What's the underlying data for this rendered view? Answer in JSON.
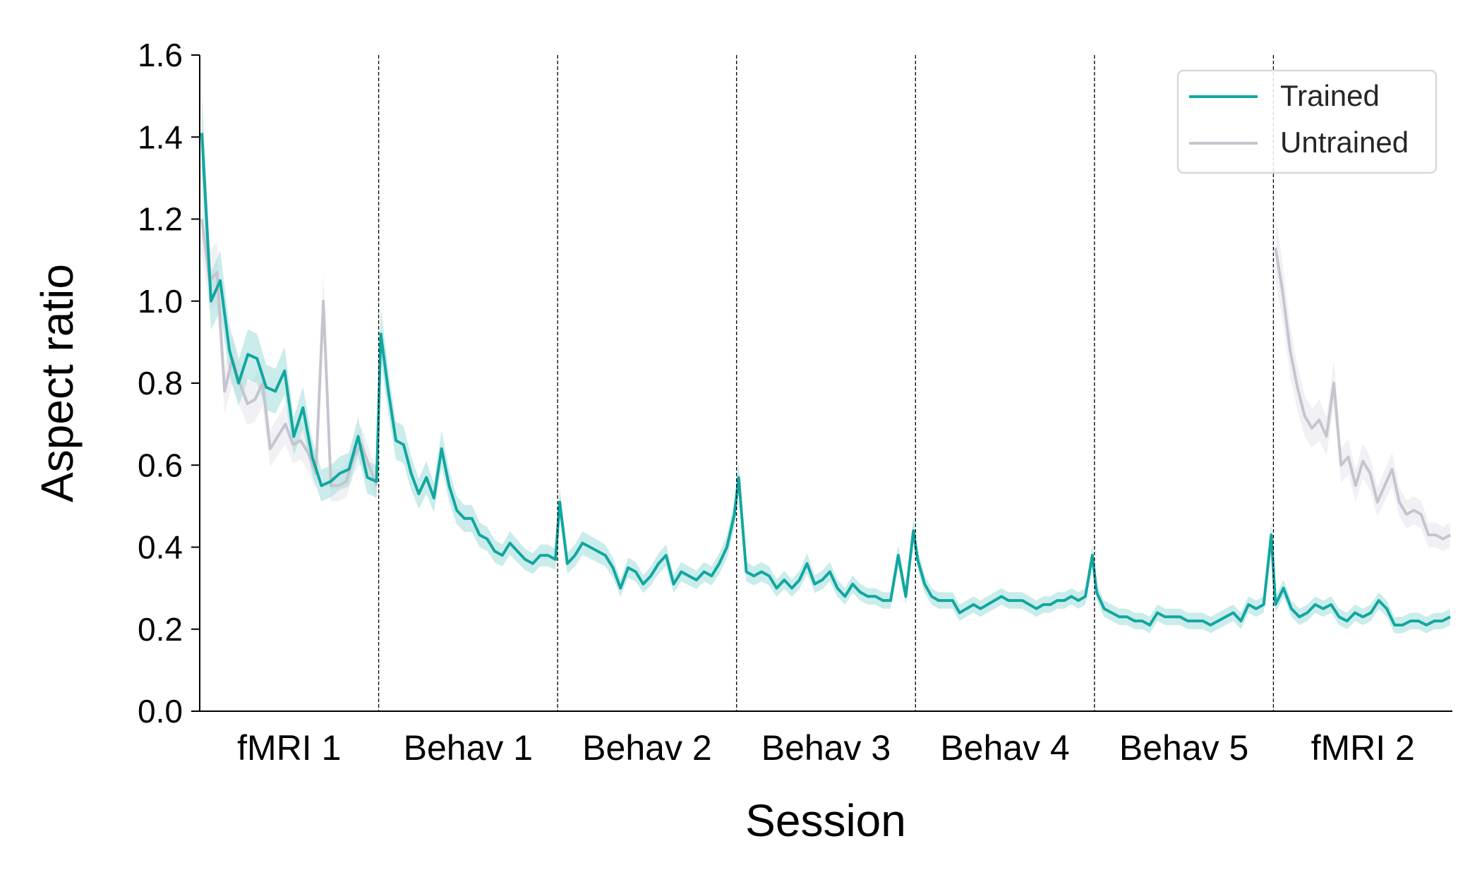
{
  "chart_data": {
    "type": "line",
    "xlabel": "Session",
    "ylabel": "Aspect ratio",
    "ylim": [
      0,
      1.6
    ],
    "yticks": [
      "0.0",
      "0.2",
      "0.4",
      "0.6",
      "0.8",
      "1.0",
      "1.2",
      "1.4",
      "1.6"
    ],
    "sessions": [
      "fMRI 1",
      "Behav 1",
      "Behav 2",
      "Behav 3",
      "Behav 4",
      "Behav 5",
      "fMRI 2"
    ],
    "legend": {
      "position": "top-right",
      "entries": [
        "Trained",
        "Untrained"
      ]
    },
    "colors": {
      "Trained": "#12a6a0",
      "Untrained": "#c5c5cf",
      "trained_band": "#9fdcd8",
      "untrained_band": "#e6e6ec"
    },
    "series": [
      {
        "name": "Trained",
        "color": "#12a6a0",
        "sessions": [
          [
            1.41,
            1.0,
            1.05,
            0.88,
            0.8,
            0.87,
            0.86,
            0.79,
            0.78,
            0.83,
            0.67,
            0.74,
            0.62,
            0.55,
            0.56,
            0.58,
            0.59,
            0.67,
            0.57,
            0.56
          ],
          [
            0.92,
            0.78,
            0.66,
            0.65,
            0.58,
            0.53,
            0.57,
            0.52,
            0.64,
            0.55,
            0.49,
            0.47,
            0.47,
            0.43,
            0.42,
            0.39,
            0.38,
            0.41,
            0.39,
            0.37,
            0.36,
            0.38,
            0.38,
            0.37
          ],
          [
            0.51,
            0.36,
            0.38,
            0.41,
            0.4,
            0.39,
            0.38,
            0.35,
            0.3,
            0.35,
            0.34,
            0.31,
            0.33,
            0.36,
            0.38,
            0.31,
            0.34,
            0.33,
            0.32,
            0.34,
            0.33,
            0.36,
            0.4,
            0.48
          ],
          [
            0.57,
            0.34,
            0.33,
            0.34,
            0.33,
            0.3,
            0.32,
            0.3,
            0.32,
            0.36,
            0.31,
            0.32,
            0.34,
            0.3,
            0.28,
            0.31,
            0.29,
            0.28,
            0.28,
            0.27,
            0.27,
            0.38,
            0.28,
            0.44
          ],
          [
            0.37,
            0.31,
            0.28,
            0.27,
            0.27,
            0.27,
            0.24,
            0.25,
            0.26,
            0.25,
            0.26,
            0.27,
            0.28,
            0.27,
            0.27,
            0.27,
            0.26,
            0.25,
            0.26,
            0.26,
            0.27,
            0.27,
            0.28,
            0.27,
            0.28,
            0.38
          ],
          [
            0.29,
            0.25,
            0.24,
            0.23,
            0.23,
            0.22,
            0.22,
            0.21,
            0.24,
            0.23,
            0.23,
            0.23,
            0.22,
            0.22,
            0.22,
            0.21,
            0.22,
            0.23,
            0.24,
            0.22,
            0.26,
            0.25,
            0.26,
            0.43
          ],
          [
            0.26,
            0.3,
            0.25,
            0.23,
            0.24,
            0.26,
            0.25,
            0.26,
            0.23,
            0.22,
            0.24,
            0.23,
            0.24,
            0.27,
            0.25,
            0.21,
            0.21,
            0.22,
            0.22,
            0.21,
            0.22,
            0.22,
            0.23
          ]
        ]
      },
      {
        "name": "Untrained",
        "color": "#c5c5cf",
        "sessions": [
          [
            1.2,
            1.05,
            1.07,
            0.78,
            0.86,
            0.8,
            0.75,
            0.76,
            0.8,
            0.64,
            0.67,
            0.7,
            0.65,
            0.66,
            0.63,
            0.58,
            1.0,
            0.55,
            0.55,
            0.56,
            0.62,
            0.65,
            0.6,
            0.55
          ]
        ],
        "session_indices": [
          0
        ]
      },
      {
        "name": "Untrained",
        "color": "#c5c5cf",
        "sessions": [
          [
            1.13,
            1.02,
            0.88,
            0.79,
            0.72,
            0.69,
            0.71,
            0.67,
            0.8,
            0.6,
            0.62,
            0.55,
            0.61,
            0.58,
            0.51,
            0.55,
            0.59,
            0.51,
            0.48,
            0.49,
            0.48,
            0.43,
            0.43,
            0.42,
            0.43
          ]
        ],
        "session_indices": [
          6
        ]
      }
    ]
  }
}
